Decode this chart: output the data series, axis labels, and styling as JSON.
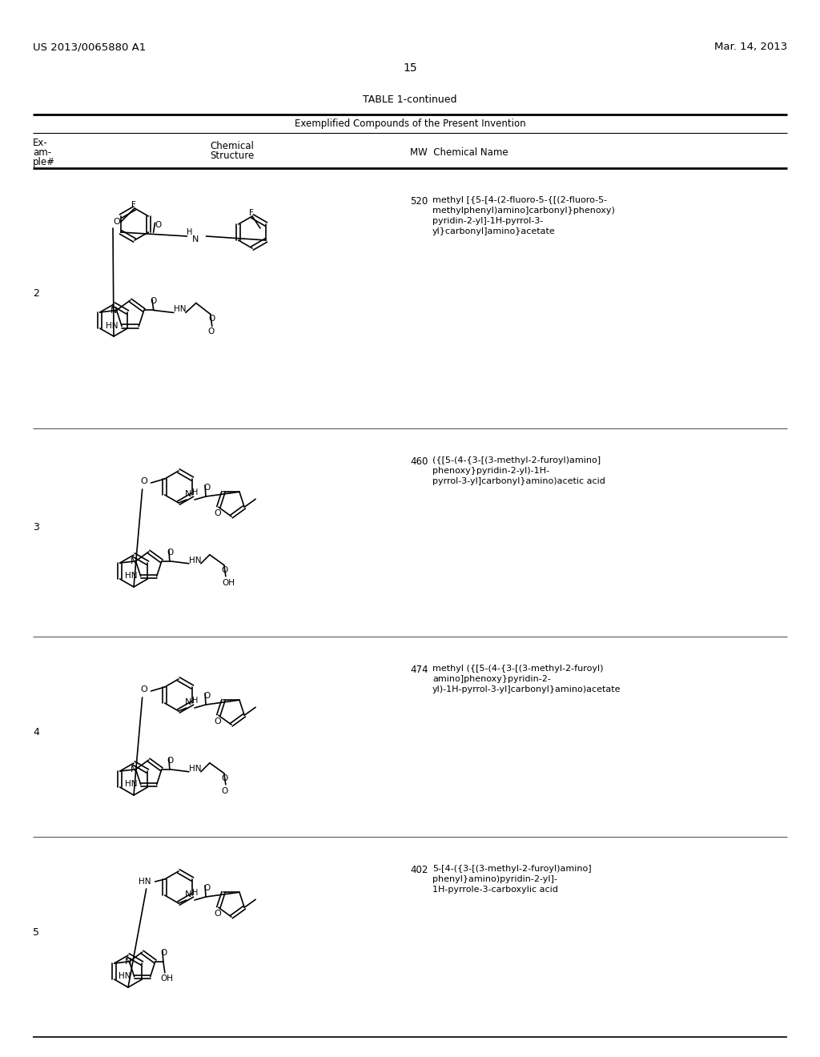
{
  "background_color": "#ffffff",
  "header_left": "US 2013/0065880 A1",
  "header_right": "Mar. 14, 2013",
  "page_number": "15",
  "table_title": "TABLE 1-continued",
  "table_subtitle": "Exemplified Compounds of the Present Invention",
  "compounds": [
    {
      "example": "2",
      "mw": "520",
      "name_lines": [
        "methyl [{5-[4-(2-fluoro-5-{[(2-fluoro-5-",
        "methylphenyl)amino]carbonyl}phenoxy)",
        "pyridin-2-yl]-1H-pyrrol-3-",
        "yl}carbonyl]amino}acetate"
      ]
    },
    {
      "example": "3",
      "mw": "460",
      "name_lines": [
        "({[5-(4-{3-[(3-methyl-2-furoyl)amino]",
        "phenoxy}pyridin-2-yl)-1H-",
        "pyrrol-3-yl]carbonyl}amino)acetic acid"
      ]
    },
    {
      "example": "4",
      "mw": "474",
      "name_lines": [
        "methyl ({[5-(4-{3-[(3-methyl-2-furoyl)",
        "amino]phenoxy}pyridin-2-",
        "yl)-1H-pyrrol-3-yl]carbonyl}amino)acetate"
      ]
    },
    {
      "example": "5",
      "mw": "402",
      "name_lines": [
        "5-[4-({3-[(3-methyl-2-furoyl)amino]",
        "phenyl}amino)pyridin-2-yl]-",
        "1H-pyrrole-3-carboxylic acid"
      ]
    }
  ],
  "lw": 1.2,
  "text_color": "#000000",
  "line_color": "#000000"
}
